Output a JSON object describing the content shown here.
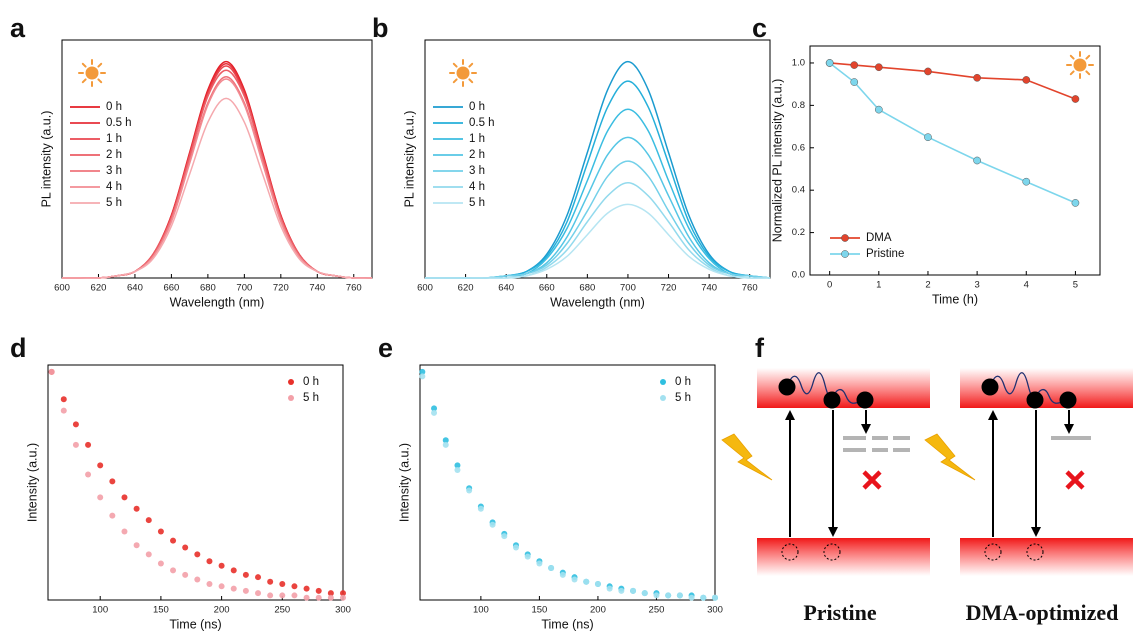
{
  "chart_data": [
    {
      "type": "line",
      "label": "a",
      "xlabel": "Wavelength (nm)",
      "ylabel": "PL intensity (a.u.)",
      "x": [
        600,
        610,
        620,
        630,
        640,
        650,
        660,
        670,
        680,
        690,
        700,
        710,
        720,
        730,
        740,
        750,
        760,
        770
      ],
      "xlim": [
        600,
        770
      ],
      "xticks": [
        600,
        620,
        640,
        660,
        680,
        700,
        720,
        740,
        760
      ],
      "ylim": [
        0,
        1.1
      ],
      "legend": "upper left",
      "series": [
        {
          "name": "0 h",
          "color": "#e41e26",
          "values": [
            0,
            0,
            0,
            0.01,
            0.03,
            0.11,
            0.29,
            0.58,
            0.87,
            1,
            0.87,
            0.58,
            0.29,
            0.11,
            0.03,
            0.01,
            0,
            0
          ]
        },
        {
          "name": "0.5 h",
          "color": "#e6313a",
          "values": [
            0,
            0,
            0,
            0.01,
            0.03,
            0.11,
            0.29,
            0.57,
            0.86,
            0.99,
            0.86,
            0.57,
            0.29,
            0.11,
            0.03,
            0.01,
            0,
            0
          ]
        },
        {
          "name": "1 h",
          "color": "#e9464f",
          "values": [
            0,
            0,
            0,
            0.01,
            0.03,
            0.11,
            0.28,
            0.57,
            0.85,
            0.98,
            0.85,
            0.57,
            0.28,
            0.11,
            0.03,
            0.01,
            0,
            0
          ]
        },
        {
          "name": "2 h",
          "color": "#ec5d65",
          "values": [
            0,
            0,
            0,
            0.01,
            0.03,
            0.11,
            0.28,
            0.56,
            0.84,
            0.96,
            0.84,
            0.56,
            0.28,
            0.11,
            0.03,
            0.01,
            0,
            0
          ]
        },
        {
          "name": "3 h",
          "color": "#ef747b",
          "values": [
            0,
            0,
            0,
            0.01,
            0.03,
            0.1,
            0.27,
            0.54,
            0.81,
            0.93,
            0.81,
            0.54,
            0.27,
            0.1,
            0.03,
            0.01,
            0,
            0
          ]
        },
        {
          "name": "4 h",
          "color": "#f28b92",
          "values": [
            0,
            0,
            0,
            0.01,
            0.03,
            0.1,
            0.26,
            0.53,
            0.8,
            0.92,
            0.8,
            0.53,
            0.26,
            0.1,
            0.03,
            0.01,
            0,
            0
          ]
        },
        {
          "name": "5 h",
          "color": "#f5a9ae",
          "values": [
            0,
            0,
            0,
            0.01,
            0.03,
            0.09,
            0.24,
            0.48,
            0.72,
            0.83,
            0.72,
            0.48,
            0.24,
            0.09,
            0.03,
            0.01,
            0,
            0
          ]
        }
      ]
    },
    {
      "type": "line",
      "label": "b",
      "xlabel": "Wavelength (nm)",
      "ylabel": "PL intensity (a.u.)",
      "x": [
        600,
        610,
        620,
        630,
        640,
        650,
        660,
        670,
        680,
        690,
        700,
        710,
        720,
        730,
        740,
        750,
        760,
        770
      ],
      "xlim": [
        600,
        770
      ],
      "xticks": [
        600,
        620,
        640,
        660,
        680,
        700,
        720,
        740,
        760
      ],
      "ylim": [
        0,
        1.1
      ],
      "legend": "upper left",
      "series": [
        {
          "name": "0 h",
          "color": "#1b9bcf",
          "values": [
            0,
            0,
            0,
            0,
            0.01,
            0.03,
            0.11,
            0.29,
            0.58,
            0.87,
            1,
            0.87,
            0.58,
            0.29,
            0.11,
            0.03,
            0.01,
            0
          ]
        },
        {
          "name": "0.5 h",
          "color": "#25afda",
          "values": [
            0,
            0,
            0,
            0,
            0.01,
            0.03,
            0.1,
            0.26,
            0.53,
            0.79,
            0.91,
            0.79,
            0.53,
            0.26,
            0.1,
            0.03,
            0.01,
            0
          ]
        },
        {
          "name": "1 h",
          "color": "#3bbde1",
          "values": [
            0,
            0,
            0,
            0,
            0.01,
            0.02,
            0.09,
            0.23,
            0.45,
            0.68,
            0.78,
            0.68,
            0.45,
            0.23,
            0.09,
            0.02,
            0.01,
            0
          ]
        },
        {
          "name": "2 h",
          "color": "#55c6e5",
          "values": [
            0,
            0,
            0,
            0,
            0.01,
            0.02,
            0.07,
            0.19,
            0.38,
            0.57,
            0.65,
            0.57,
            0.38,
            0.19,
            0.07,
            0.02,
            0.01,
            0
          ]
        },
        {
          "name": "3 h",
          "color": "#73d0e9",
          "values": [
            0,
            0,
            0,
            0,
            0.01,
            0.02,
            0.06,
            0.16,
            0.31,
            0.47,
            0.54,
            0.47,
            0.31,
            0.16,
            0.06,
            0.02,
            0.01,
            0
          ]
        },
        {
          "name": "4 h",
          "color": "#93daed",
          "values": [
            0,
            0,
            0,
            0,
            0,
            0.01,
            0.05,
            0.13,
            0.26,
            0.38,
            0.44,
            0.38,
            0.26,
            0.13,
            0.05,
            0.01,
            0,
            0
          ]
        },
        {
          "name": "5 h",
          "color": "#b6e5f2",
          "values": [
            0,
            0,
            0,
            0,
            0,
            0.01,
            0.04,
            0.1,
            0.2,
            0.3,
            0.34,
            0.3,
            0.2,
            0.1,
            0.04,
            0.01,
            0,
            0
          ]
        }
      ]
    },
    {
      "type": "line",
      "label": "c",
      "xlabel": "Time (h)",
      "ylabel": "Normalized PL intensity (a.u.)",
      "markers": true,
      "x": [
        0,
        0.5,
        1,
        2,
        3,
        4,
        5
      ],
      "xlim": [
        -0.4,
        5.5
      ],
      "xticks": [
        0,
        1,
        2,
        3,
        4,
        5
      ],
      "ylim": [
        0,
        1.08
      ],
      "yticks": [
        {
          "value": 0,
          "label": "0.0"
        },
        0.2,
        0.4,
        0.6,
        0.8,
        {
          "value": 1,
          "label": "1.0"
        }
      ],
      "legend": "lower left",
      "series": [
        {
          "name": "DMA",
          "color": "#e2442c",
          "values": [
            1,
            0.99,
            0.98,
            0.96,
            0.93,
            0.92,
            0.83
          ]
        },
        {
          "name": "Pristine",
          "color": "#7dd6ec",
          "values": [
            1,
            0.91,
            0.78,
            0.65,
            0.54,
            0.44,
            0.34
          ]
        }
      ]
    },
    {
      "type": "scatter",
      "label": "d",
      "xlabel": "Time (ns)",
      "ylabel": "Intensity (a.u.)",
      "x": [
        60,
        70,
        80,
        90,
        100,
        110,
        120,
        130,
        140,
        150,
        160,
        170,
        180,
        190,
        200,
        210,
        220,
        230,
        240,
        250,
        260,
        270,
        280,
        290,
        300
      ],
      "xlim": [
        57,
        300
      ],
      "xticks": [
        100,
        150,
        200,
        250,
        300
      ],
      "ylim": [
        0,
        1.03
      ],
      "legend": "upper right",
      "series": [
        {
          "name": "0 h",
          "color": "#e8302a",
          "values": [
            1,
            0.88,
            0.77,
            0.68,
            0.59,
            0.52,
            0.45,
            0.4,
            0.35,
            0.3,
            0.26,
            0.23,
            0.2,
            0.17,
            0.15,
            0.13,
            0.11,
            0.1,
            0.08,
            0.07,
            0.06,
            0.05,
            0.04,
            0.03,
            0.03
          ]
        },
        {
          "name": "5 h",
          "color": "#f3a0a8",
          "values": [
            1,
            0.83,
            0.68,
            0.55,
            0.45,
            0.37,
            0.3,
            0.24,
            0.2,
            0.16,
            0.13,
            0.11,
            0.09,
            0.07,
            0.06,
            0.05,
            0.04,
            0.03,
            0.02,
            0.02,
            0.02,
            0.01,
            0.01,
            0.01,
            0.01
          ]
        }
      ]
    },
    {
      "type": "scatter",
      "label": "e",
      "xlabel": "Time (ns)",
      "ylabel": "Intensity (a.u.)",
      "x": [
        50,
        60,
        70,
        80,
        90,
        100,
        110,
        120,
        130,
        140,
        150,
        160,
        170,
        180,
        190,
        200,
        210,
        220,
        230,
        240,
        250,
        260,
        270,
        280,
        290,
        300
      ],
      "xlim": [
        48,
        300
      ],
      "xticks": [
        100,
        150,
        200,
        250,
        300
      ],
      "ylim": [
        0,
        1.03
      ],
      "legend": "upper right",
      "series": [
        {
          "name": "0 h",
          "color": "#2fbfe0",
          "values": [
            1,
            0.84,
            0.7,
            0.59,
            0.49,
            0.41,
            0.34,
            0.29,
            0.24,
            0.2,
            0.17,
            0.14,
            0.12,
            0.1,
            0.08,
            0.07,
            0.06,
            0.05,
            0.04,
            0.03,
            0.03,
            0.02,
            0.02,
            0.02,
            0.01,
            0.01
          ]
        },
        {
          "name": "5 h",
          "color": "#a3e1f0",
          "values": [
            0.98,
            0.82,
            0.68,
            0.57,
            0.48,
            0.4,
            0.33,
            0.28,
            0.23,
            0.19,
            0.16,
            0.14,
            0.11,
            0.09,
            0.08,
            0.07,
            0.05,
            0.04,
            0.04,
            0.03,
            0.02,
            0.02,
            0.02,
            0.01,
            0.01,
            0.01
          ]
        }
      ]
    }
  ],
  "diagram": {
    "label": "f",
    "captions": [
      "Pristine",
      "DMA-optimized"
    ]
  }
}
